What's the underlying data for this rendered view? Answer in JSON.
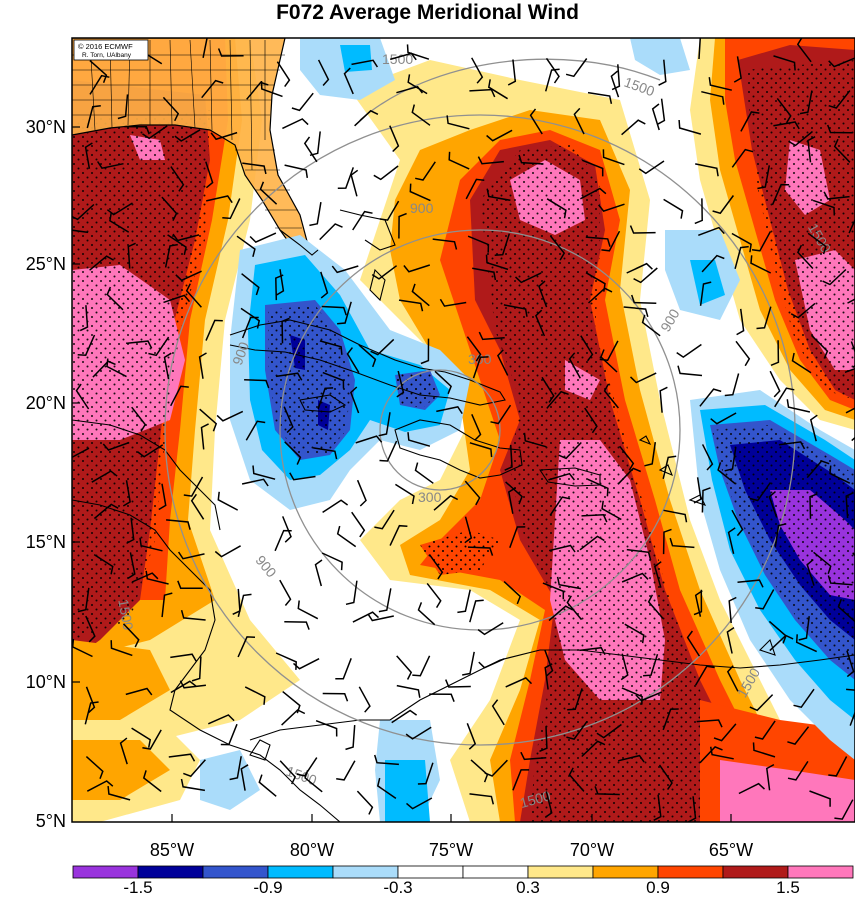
{
  "title": "F072 Average Meridional Wind",
  "credit": {
    "line1": "© 2016 ECMWF",
    "line2": "R. Torn, UAlbany"
  },
  "lat_ticks": [
    "30°N",
    "25°N",
    "20°N",
    "15°N",
    "10°N",
    "5°N"
  ],
  "lon_ticks": [
    "85°W",
    "80°W",
    "75°W",
    "70°W",
    "65°W"
  ],
  "range_rings": {
    "labels": [
      "300",
      "300",
      "900",
      "900",
      "900",
      "900",
      "1500",
      "1500",
      "1500",
      "1500",
      "1500",
      "1500",
      "1500"
    ],
    "color": "#909090"
  },
  "colorbar": {
    "colors": [
      "#9933dd",
      "#000099",
      "#3355cc",
      "#00bbff",
      "#aadcfa",
      "#ffffff",
      "#ffffff",
      "#ffe88a",
      "#ffa500",
      "#ff4500",
      "#b01a1a",
      "#ff77bb"
    ],
    "labels": [
      "-1.5",
      "-0.9",
      "-0.3",
      "0.3",
      "0.9",
      "1.5"
    ]
  },
  "colors": {
    "stipple": "#000000",
    "coast": "#000000",
    "florida_land": "#ffb347"
  }
}
